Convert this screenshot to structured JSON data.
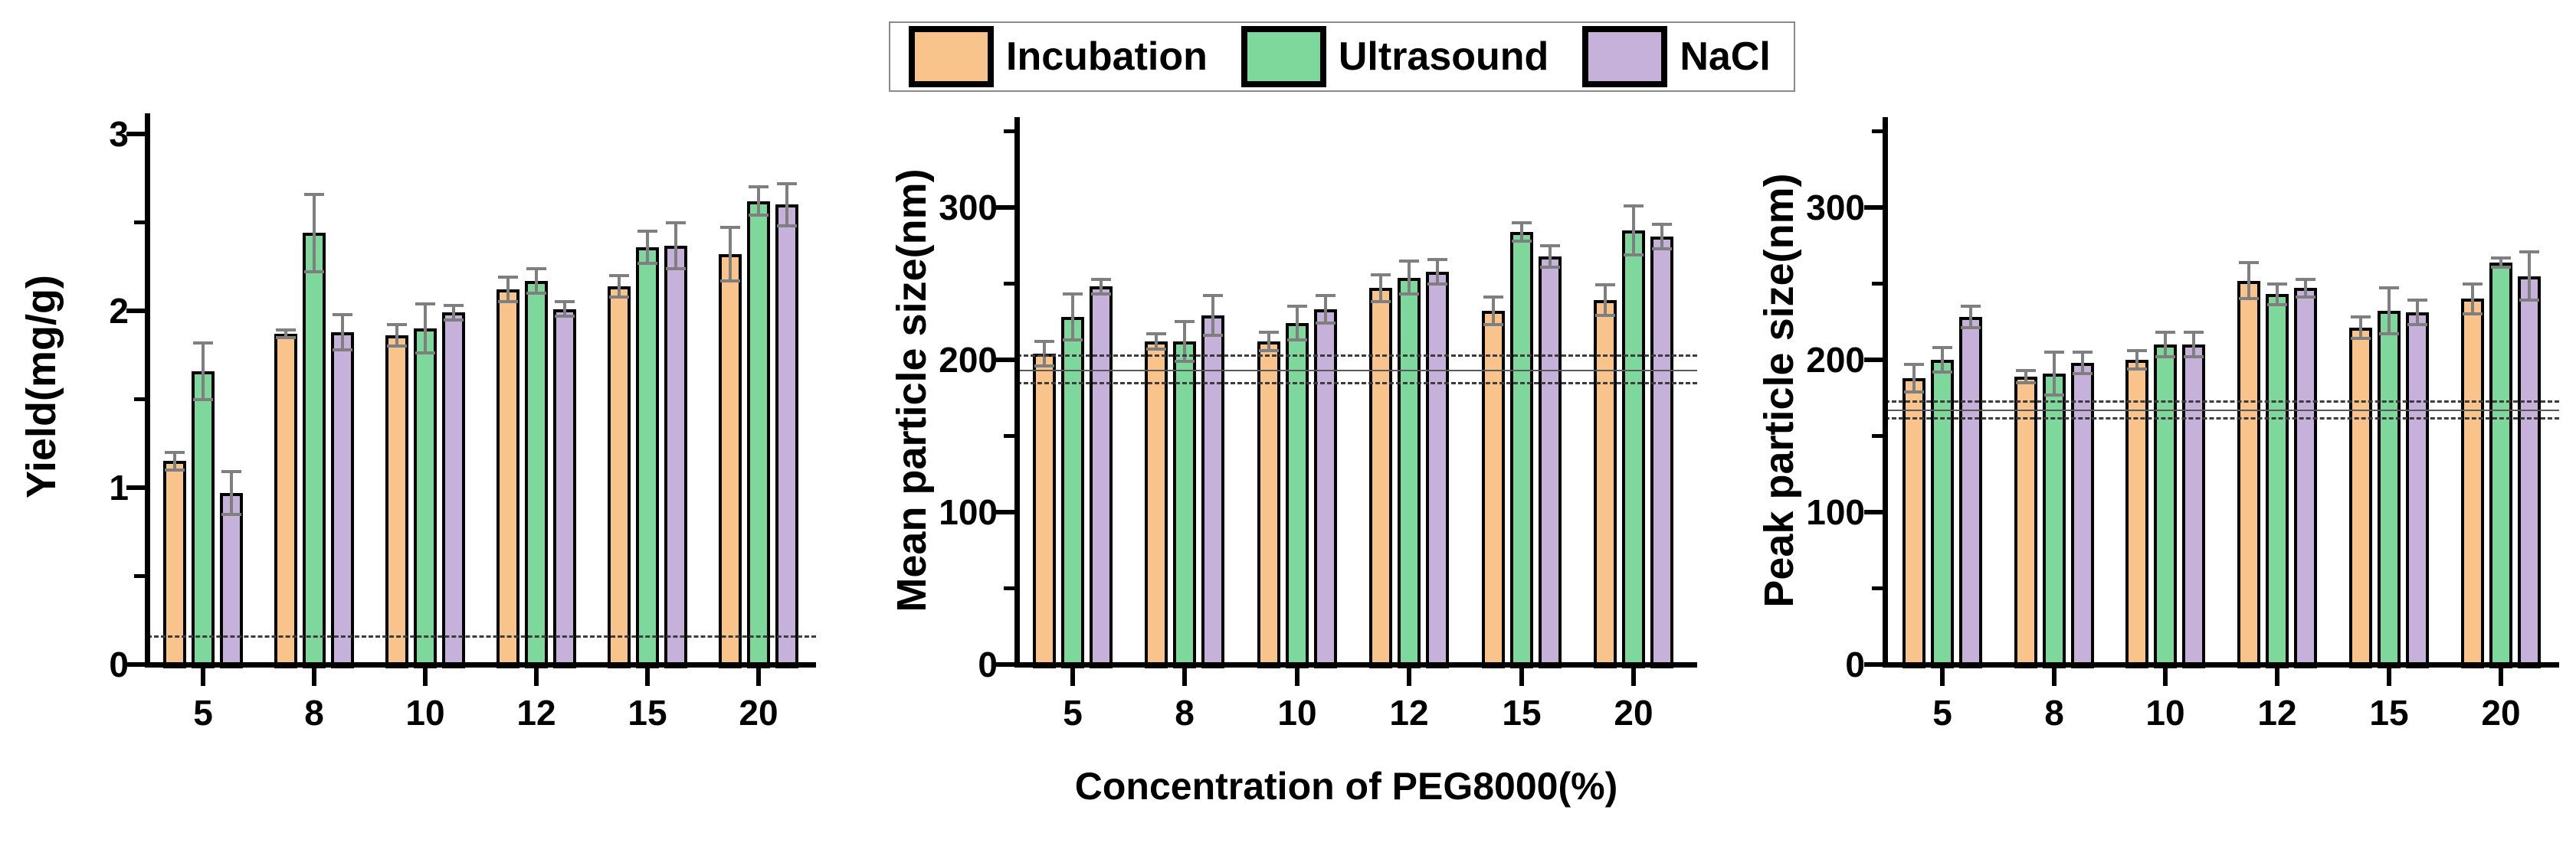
{
  "legend": {
    "items": [
      {
        "label": "Incubation",
        "color": "#F9C48C"
      },
      {
        "label": "Ultrasound",
        "color": "#7ED79B"
      },
      {
        "label": "NaCl",
        "color": "#C5B1DA"
      }
    ]
  },
  "xlabel": "Concentration of PEG8000(%)",
  "colors": {
    "bar_border": "#000000",
    "error_bar": "#7f7f7f",
    "reference_line": "#3c3c3c"
  },
  "chart_data": [
    {
      "type": "bar",
      "title": "",
      "ylabel": "Yield(mg/g)",
      "xlabel": "Concentration of PEG8000(%)",
      "categories": [
        "5",
        "8",
        "10",
        "12",
        "15",
        "20"
      ],
      "ylim": [
        0,
        3.1
      ],
      "yticks_major": [
        0,
        1,
        2,
        3
      ],
      "ytick_labels": [
        "0",
        "1",
        "2",
        "3"
      ],
      "yticks_minor": [
        0.5,
        1.5,
        2.5
      ],
      "grid": false,
      "legend_position": "top-center-shared",
      "series": [
        {
          "name": "Incubation",
          "values": [
            1.15,
            1.87,
            1.86,
            2.12,
            2.14,
            2.32
          ],
          "errors": [
            0.05,
            0.02,
            0.06,
            0.07,
            0.06,
            0.15
          ]
        },
        {
          "name": "Ultrasound",
          "values": [
            1.66,
            2.44,
            1.9,
            2.17,
            2.36,
            2.62
          ],
          "errors": [
            0.16,
            0.22,
            0.14,
            0.07,
            0.09,
            0.08
          ]
        },
        {
          "name": "NaCl",
          "values": [
            0.97,
            1.88,
            1.99,
            2.01,
            2.37,
            2.6
          ],
          "errors": [
            0.12,
            0.1,
            0.04,
            0.04,
            0.13,
            0.12
          ]
        }
      ],
      "reference_lines": [
        {
          "value": 0.16,
          "style": "dashed"
        }
      ]
    },
    {
      "type": "bar",
      "title": "",
      "ylabel": "Mean particle size(nm)",
      "xlabel": "Concentration of PEG8000(%)",
      "categories": [
        "5",
        "8",
        "10",
        "12",
        "15",
        "20"
      ],
      "ylim": [
        0,
        360
      ],
      "yticks_major": [
        0,
        100,
        200,
        300
      ],
      "ytick_labels": [
        "0",
        "100",
        "200",
        "300"
      ],
      "yticks_minor": [
        50,
        150,
        250,
        350
      ],
      "grid": false,
      "legend_position": "top-center-shared",
      "series": [
        {
          "name": "Incubation",
          "values": [
            204,
            212,
            212,
            247,
            232,
            239
          ],
          "errors": [
            8,
            5,
            6,
            9,
            9,
            10
          ]
        },
        {
          "name": "Ultrasound",
          "values": [
            228,
            212,
            224,
            254,
            284,
            285
          ],
          "errors": [
            15,
            13,
            11,
            11,
            6,
            16
          ]
        },
        {
          "name": "NaCl",
          "values": [
            248,
            229,
            233,
            258,
            268,
            281
          ],
          "errors": [
            5,
            13,
            9,
            8,
            7,
            8
          ]
        }
      ],
      "reference_lines": [
        {
          "value": 203,
          "style": "dashed"
        },
        {
          "value": 193,
          "style": "solid"
        },
        {
          "value": 185,
          "style": "dashed"
        }
      ]
    },
    {
      "type": "bar",
      "title": "",
      "ylabel": "Peak particle size(nm)",
      "xlabel": "Concentration of PEG8000(%)",
      "categories": [
        "5",
        "8",
        "10",
        "12",
        "15",
        "20"
      ],
      "ylim": [
        0,
        360
      ],
      "yticks_major": [
        0,
        100,
        200,
        300
      ],
      "ytick_labels": [
        "0",
        "100",
        "200",
        "300"
      ],
      "yticks_minor": [
        50,
        150,
        250,
        350
      ],
      "grid": false,
      "legend_position": "top-center-shared",
      "series": [
        {
          "name": "Incubation",
          "values": [
            188,
            189,
            200,
            252,
            221,
            240
          ],
          "errors": [
            9,
            4,
            6,
            12,
            7,
            10
          ]
        },
        {
          "name": "Ultrasound",
          "values": [
            200,
            191,
            210,
            243,
            232,
            264
          ],
          "errors": [
            8,
            14,
            8,
            7,
            15,
            3
          ]
        },
        {
          "name": "NaCl",
          "values": [
            228,
            198,
            210,
            247,
            231,
            255
          ],
          "errors": [
            7,
            7,
            8,
            6,
            8,
            16
          ]
        }
      ],
      "reference_lines": [
        {
          "value": 173,
          "style": "dashed"
        },
        {
          "value": 167,
          "style": "solid"
        },
        {
          "value": 162,
          "style": "dashed"
        }
      ]
    }
  ]
}
